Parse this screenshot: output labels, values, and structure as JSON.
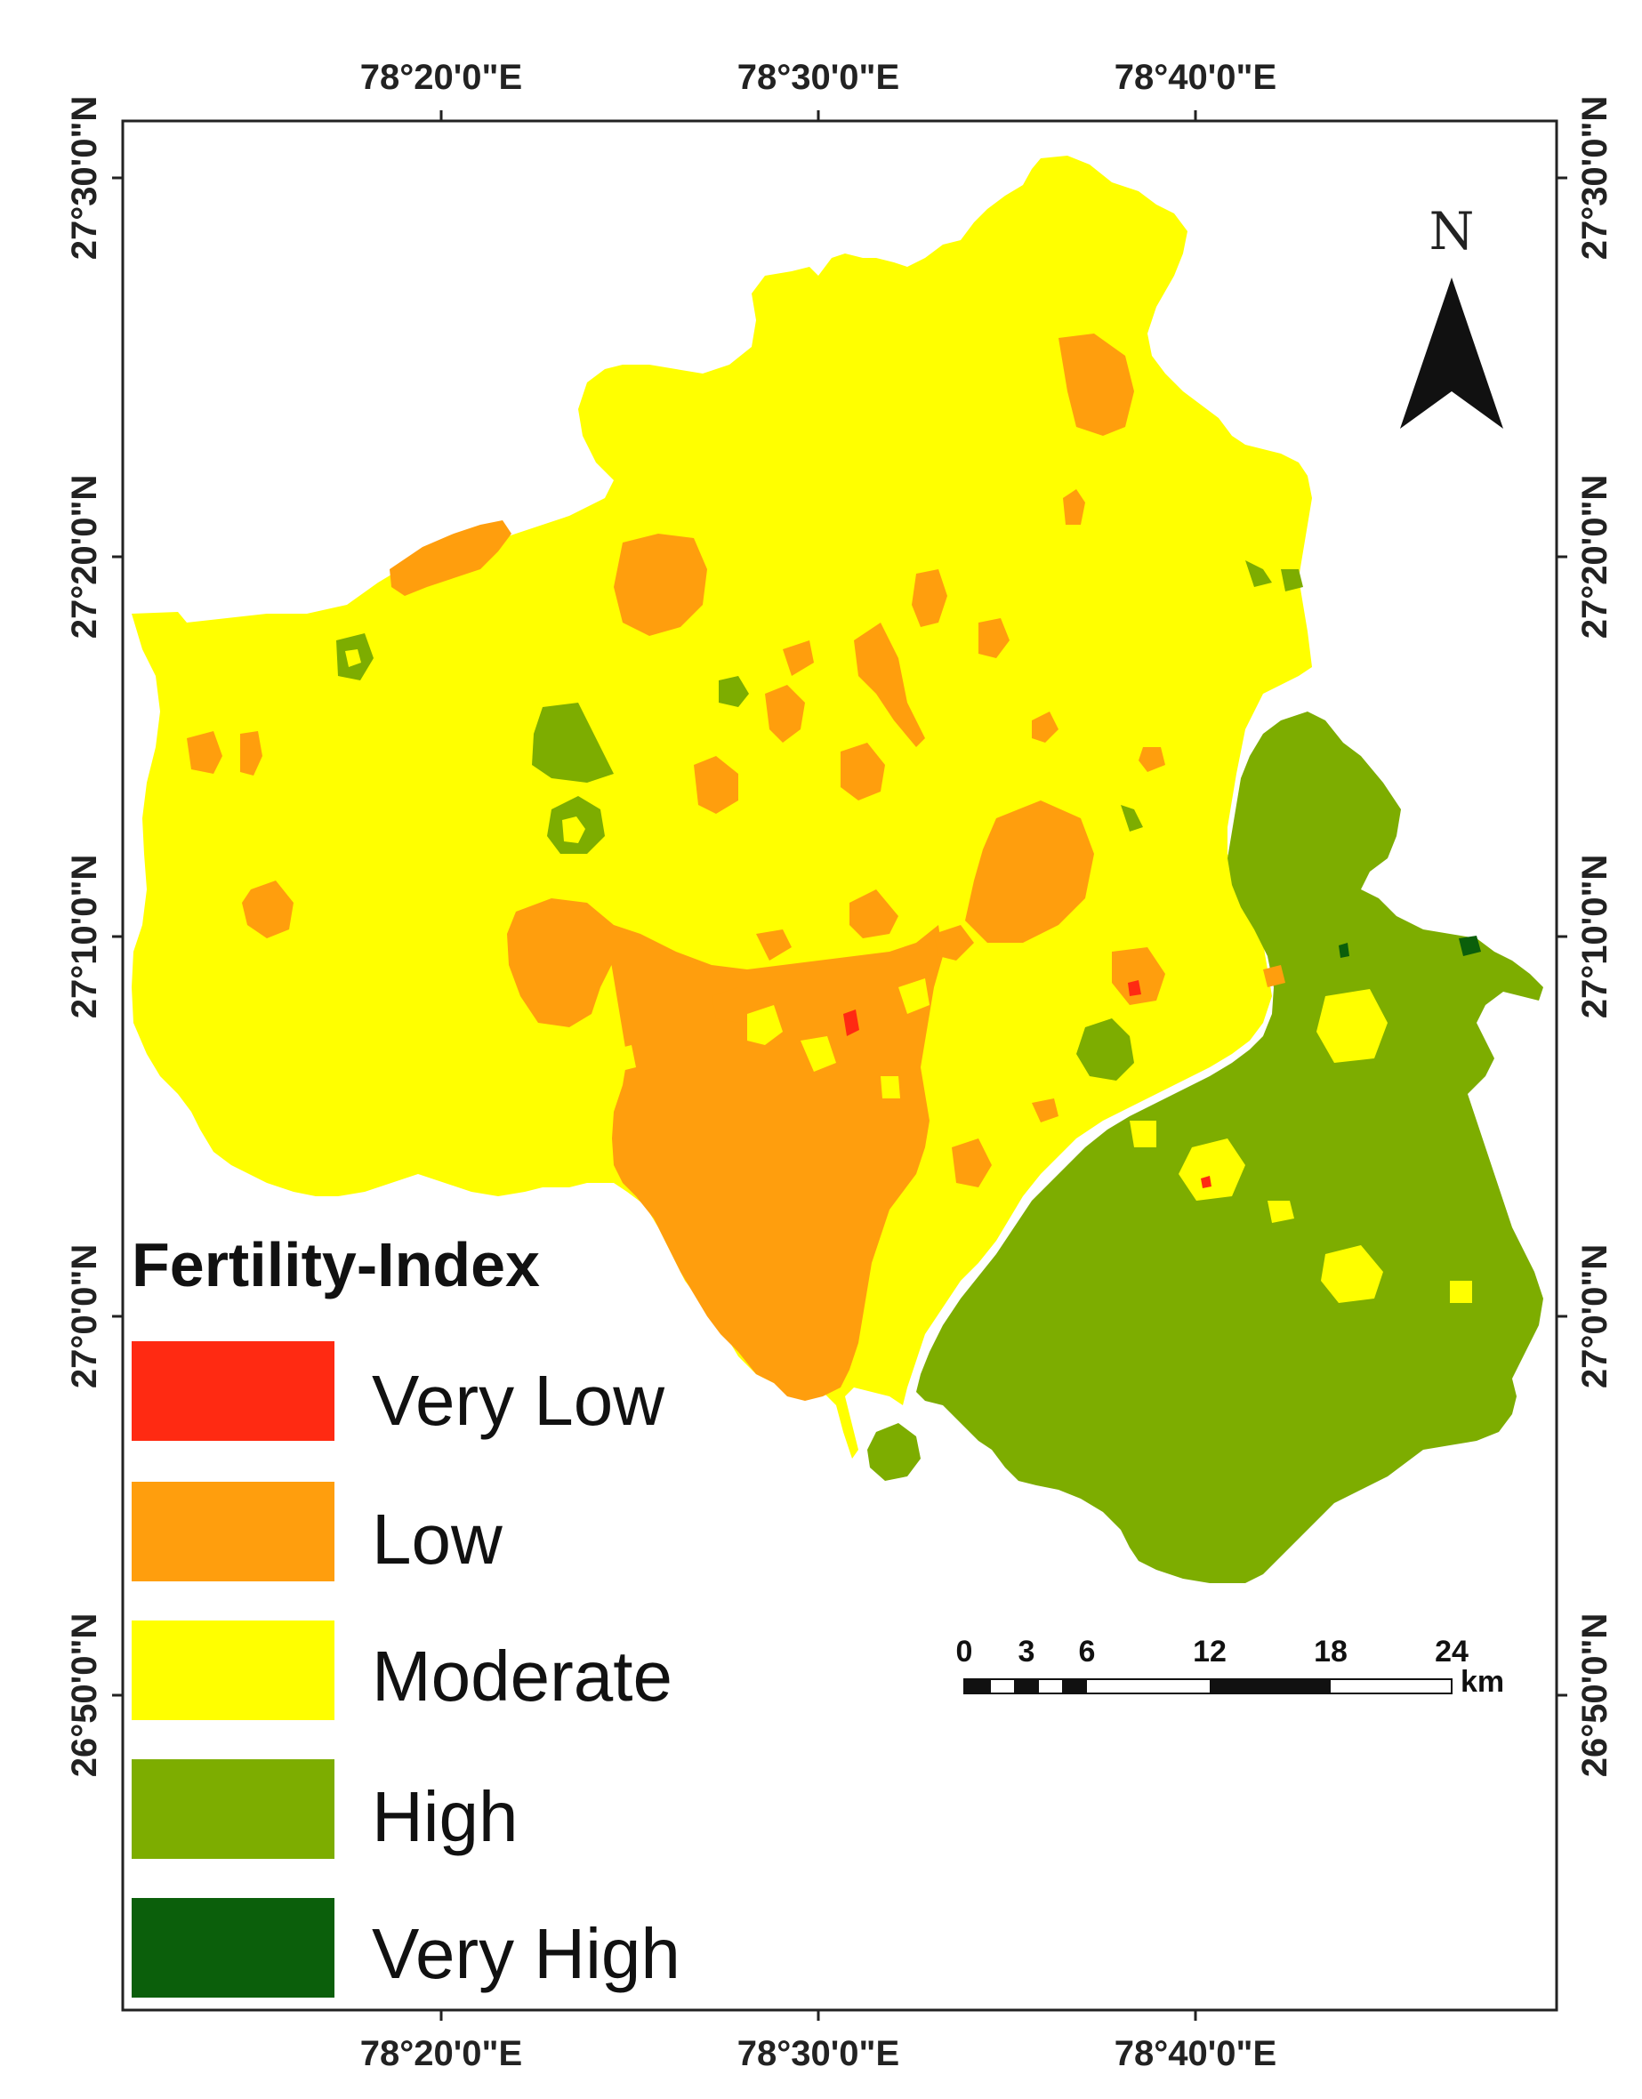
{
  "map": {
    "top_labels": [
      "78°20'0\"E",
      "78°30'0\"E",
      "78°40'0\"E"
    ],
    "bottom_labels": [
      "78°20'0\"E",
      "78°30'0\"E",
      "78°40'0\"E"
    ],
    "left_labels": [
      "27°30'0\"N",
      "27°20'0\"N",
      "27°10'0\"N",
      "27°0'0\"N",
      "26°50'0\"N"
    ],
    "right_labels": [
      "27°30'0\"N",
      "27°20'0\"N",
      "27°10'0\"N",
      "27°0'0\"N",
      "26°50'0\"N"
    ],
    "north_label": "N",
    "legend": {
      "title": "Fertility-Index",
      "items": [
        {
          "label": "Very Low",
          "color": "#ff2a12"
        },
        {
          "label": "Low",
          "color": "#ff9e0d"
        },
        {
          "label": "Moderate",
          "color": "#ffff00"
        },
        {
          "label": "High",
          "color": "#7dad00"
        },
        {
          "label": "Very High",
          "color": "#0b5f0b"
        }
      ]
    },
    "scale": {
      "ticks": [
        "0",
        "3",
        "6",
        "12",
        "18",
        "24"
      ],
      "unit": "km"
    }
  }
}
